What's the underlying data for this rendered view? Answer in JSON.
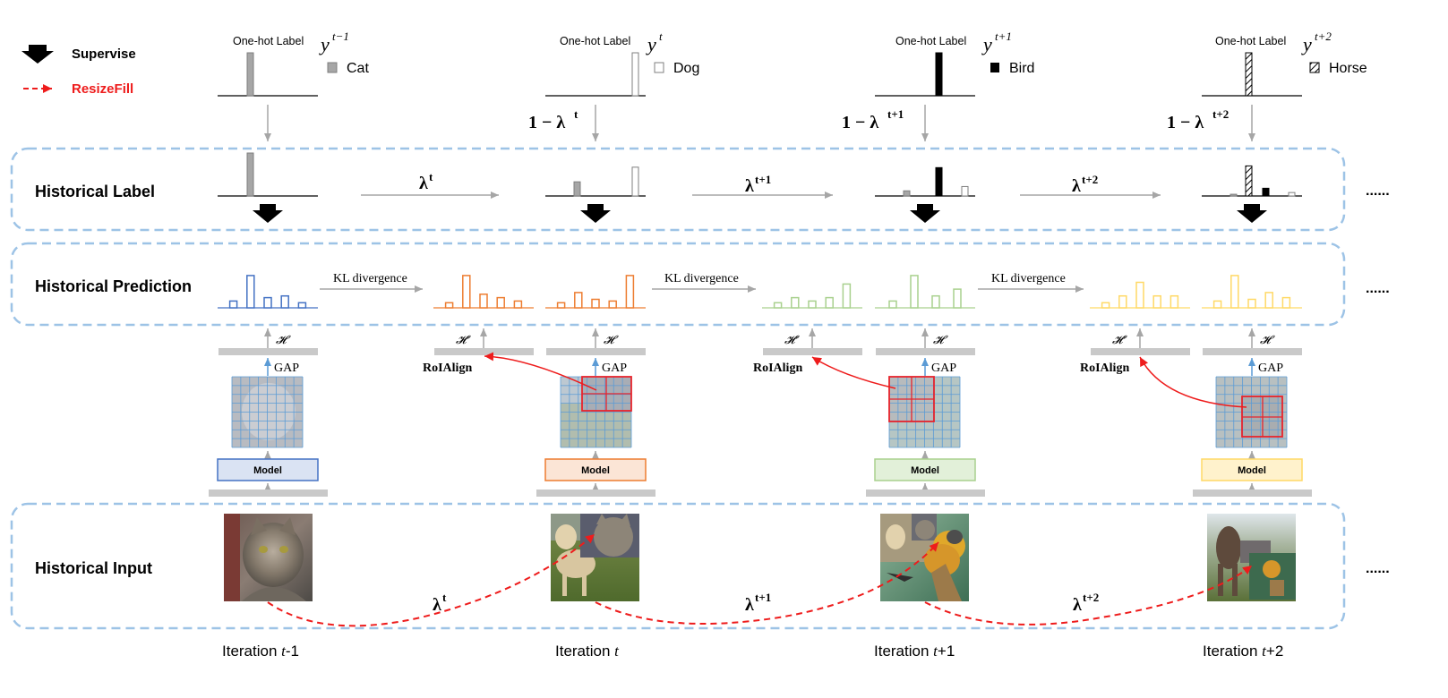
{
  "legend": {
    "supervise_label": "Supervise",
    "resizefill_label": "ResizeFill",
    "resizefill_color": "#ee1c1c"
  },
  "rows": {
    "historical_label": "Historical Label",
    "historical_prediction": "Historical Prediction",
    "historical_input": "Historical Input",
    "ellipsis": "......"
  },
  "onehot": {
    "caption": "One-hot Label",
    "classes": [
      {
        "name": "Cat",
        "y_sup": "t−1",
        "fill": "gray"
      },
      {
        "name": "Dog",
        "y_sup": "t",
        "fill": "white"
      },
      {
        "name": "Bird",
        "y_sup": "t+1",
        "fill": "black"
      },
      {
        "name": "Horse",
        "y_sup": "t+2",
        "fill": "hatch"
      }
    ]
  },
  "weights": {
    "one_minus": [
      "1 − λ",
      "1 − λ",
      "1 − λ"
    ],
    "one_minus_sup": [
      "t",
      "t+1",
      "t+2"
    ],
    "lambda": "λ",
    "lambda_sup": [
      "t",
      "t+1",
      "t+2"
    ]
  },
  "kl_label": "KL divergence",
  "heads": {
    "H": "𝓗",
    "Hprime": "𝓗′",
    "gap": "GAP",
    "roialign": "RoIAlign",
    "model": "Model"
  },
  "iterations": [
    {
      "prefix": "Iteration ",
      "var": "t",
      "suffix": "-1"
    },
    {
      "prefix": "Iteration ",
      "var": "t",
      "suffix": ""
    },
    {
      "prefix": "Iteration ",
      "var": "t",
      "suffix": "+1"
    },
    {
      "prefix": "Iteration ",
      "var": "t",
      "suffix": "+2"
    }
  ],
  "colors": {
    "stage1": "#4472c4",
    "stage1_fill": "#dae3f3",
    "stage2": "#ed7d31",
    "stage2_fill": "#fbe5d6",
    "stage3": "#a9d18e",
    "stage3_fill": "#e2f0d9",
    "stage4": "#ffd966",
    "stage4_fill": "#fff2cc",
    "dashed_box": "#9dc3e6",
    "cat_gray": "#a6a6a6"
  },
  "chart_data": [
    {
      "type": "bar",
      "role": "one-hot label t-1",
      "categories": [
        "Cat"
      ],
      "values": [
        1.0
      ]
    },
    {
      "type": "bar",
      "role": "one-hot label t",
      "categories": [
        "Dog"
      ],
      "values": [
        1.0
      ]
    },
    {
      "type": "bar",
      "role": "one-hot label t+1",
      "categories": [
        "Bird"
      ],
      "values": [
        1.0
      ]
    },
    {
      "type": "bar",
      "role": "one-hot label t+2",
      "categories": [
        "Horse"
      ],
      "values": [
        1.0
      ]
    },
    {
      "type": "bar",
      "role": "historical label t-1",
      "categories": [
        "Cat"
      ],
      "values": [
        1.0
      ]
    },
    {
      "type": "bar",
      "role": "historical label t",
      "categories": [
        "Cat",
        "Dog"
      ],
      "values": [
        0.33,
        0.67
      ]
    },
    {
      "type": "bar",
      "role": "historical label t+1",
      "categories": [
        "Cat",
        "Dog",
        "Bird"
      ],
      "values": [
        0.12,
        0.22,
        0.66
      ]
    },
    {
      "type": "bar",
      "role": "historical label t+2",
      "categories": [
        "Cat",
        "Dog",
        "Bird",
        "Horse"
      ],
      "values": [
        0.04,
        0.08,
        0.18,
        0.7
      ]
    },
    {
      "type": "bar",
      "role": "prediction t-1",
      "values": [
        0.2,
        0.95,
        0.3,
        0.35,
        0.15
      ]
    },
    {
      "type": "bar",
      "role": "prediction t-1 roi",
      "values": [
        0.15,
        0.95,
        0.4,
        0.3,
        0.2
      ]
    },
    {
      "type": "bar",
      "role": "prediction t",
      "values": [
        0.15,
        0.45,
        0.25,
        0.2,
        0.95
      ]
    },
    {
      "type": "bar",
      "role": "prediction t roi",
      "values": [
        0.15,
        0.3,
        0.2,
        0.3,
        0.7
      ]
    },
    {
      "type": "bar",
      "role": "prediction t+1",
      "values": [
        0.2,
        0.95,
        0.35,
        0.55
      ]
    },
    {
      "type": "bar",
      "role": "prediction t+1 roi",
      "values": [
        0.15,
        0.35,
        0.75,
        0.35,
        0.35
      ]
    },
    {
      "type": "bar",
      "role": "prediction t+2",
      "values": [
        0.2,
        0.95,
        0.25,
        0.45,
        0.3
      ]
    }
  ]
}
